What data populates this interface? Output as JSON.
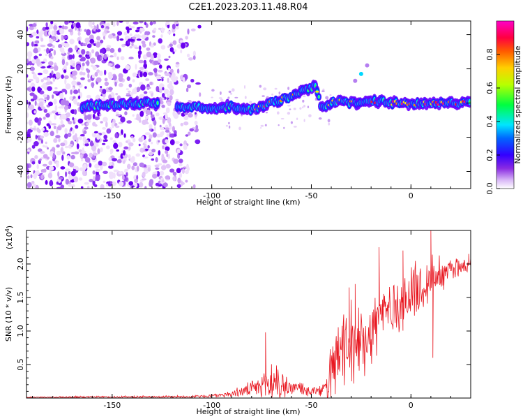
{
  "title": "C2E1.2023.203.11.48.R04",
  "chart_data": [
    {
      "type": "heatmap",
      "xlabel": "Height of straight line (km)",
      "ylabel": "Frequency (Hz)",
      "xlim": [
        -193,
        30
      ],
      "ylim": [
        -50,
        48
      ],
      "x_ticks": [
        -150,
        -100,
        -50,
        0
      ],
      "y_ticks": [
        -40,
        -20,
        0,
        20,
        40
      ],
      "colorbar": {
        "label": "Normalized spectral amplitude",
        "range": [
          0,
          1
        ],
        "ticks": [
          "0.0",
          "0.2",
          "0.4",
          "0.6",
          "0.8"
        ],
        "colors": [
          "#ffffff",
          "#b46bf5",
          "#6a00ff",
          "#0000ff",
          "#00ffff",
          "#00ff00",
          "#ffff00",
          "#ff8000",
          "#ff0000",
          "#ff00ff"
        ]
      },
      "ridge": {
        "x": [
          -165,
          -150,
          -140,
          -130,
          -115,
          -100,
          -90,
          -80,
          -70,
          -60,
          -52,
          -48,
          -45,
          -40,
          -35,
          -30,
          -25,
          -20,
          -15,
          -10,
          -5,
          0,
          10,
          20,
          30
        ],
        "y": [
          -2,
          -1,
          0,
          0,
          -2,
          -3,
          -2,
          -4,
          0,
          4,
          8,
          10,
          -2,
          0,
          2,
          0,
          0,
          1,
          1,
          0,
          0,
          -1,
          0,
          0,
          0
        ]
      },
      "noise_region_x": [
        -193,
        -103
      ],
      "secondary_streak": {
        "x": [
          -28,
          -25,
          -22
        ],
        "y": [
          13,
          17,
          22
        ]
      }
    },
    {
      "type": "line",
      "xlabel": "Height of straight line (km)",
      "ylabel": "SNR (10 * v/v)",
      "y_scale_label": "(x10",
      "y_scale_exponent": "4",
      "y_scale_suffix": ")",
      "xlim": [
        -193,
        30
      ],
      "ylim": [
        0,
        2.5
      ],
      "x_ticks": [
        -150,
        -100,
        -50,
        0
      ],
      "y_ticks": [
        "0.5",
        "1.0",
        "1.5",
        "2.0"
      ],
      "series_color": "#e8161f",
      "envelope": {
        "x": [
          -193,
          -110,
          -100,
          -90,
          -80,
          -75,
          -70,
          -65,
          -60,
          -55,
          -50,
          -45,
          -42,
          -40,
          -38,
          -35,
          -30,
          -25,
          -20,
          -15,
          -10,
          -5,
          0,
          5,
          10,
          15,
          20,
          25,
          30
        ],
        "base": [
          0.01,
          0.02,
          0.03,
          0.06,
          0.12,
          0.16,
          0.22,
          0.18,
          0.15,
          0.12,
          0.1,
          0.09,
          0.15,
          0.35,
          0.5,
          0.6,
          0.7,
          0.8,
          1.0,
          1.2,
          1.3,
          1.35,
          1.5,
          1.6,
          1.75,
          1.85,
          1.9,
          1.95,
          2.0
        ],
        "amp": [
          0.01,
          0.02,
          0.03,
          0.05,
          0.12,
          0.18,
          0.35,
          0.25,
          0.15,
          0.12,
          0.08,
          0.08,
          0.25,
          0.45,
          0.55,
          0.55,
          0.6,
          0.65,
          0.6,
          0.55,
          0.5,
          0.45,
          0.45,
          0.4,
          0.4,
          0.3,
          0.2,
          0.15,
          0.12
        ]
      },
      "peaks": [
        {
          "x": -73,
          "y": 0.98
        },
        {
          "x": -31,
          "y": 1.65
        },
        {
          "x": -28,
          "y": 1.7
        },
        {
          "x": -16,
          "y": 2.25
        },
        {
          "x": -4,
          "y": 2.2
        },
        {
          "x": 10,
          "y": 2.5
        },
        {
          "x": 11,
          "y": 0.6
        },
        {
          "x": 29,
          "y": 2.15
        }
      ]
    }
  ]
}
